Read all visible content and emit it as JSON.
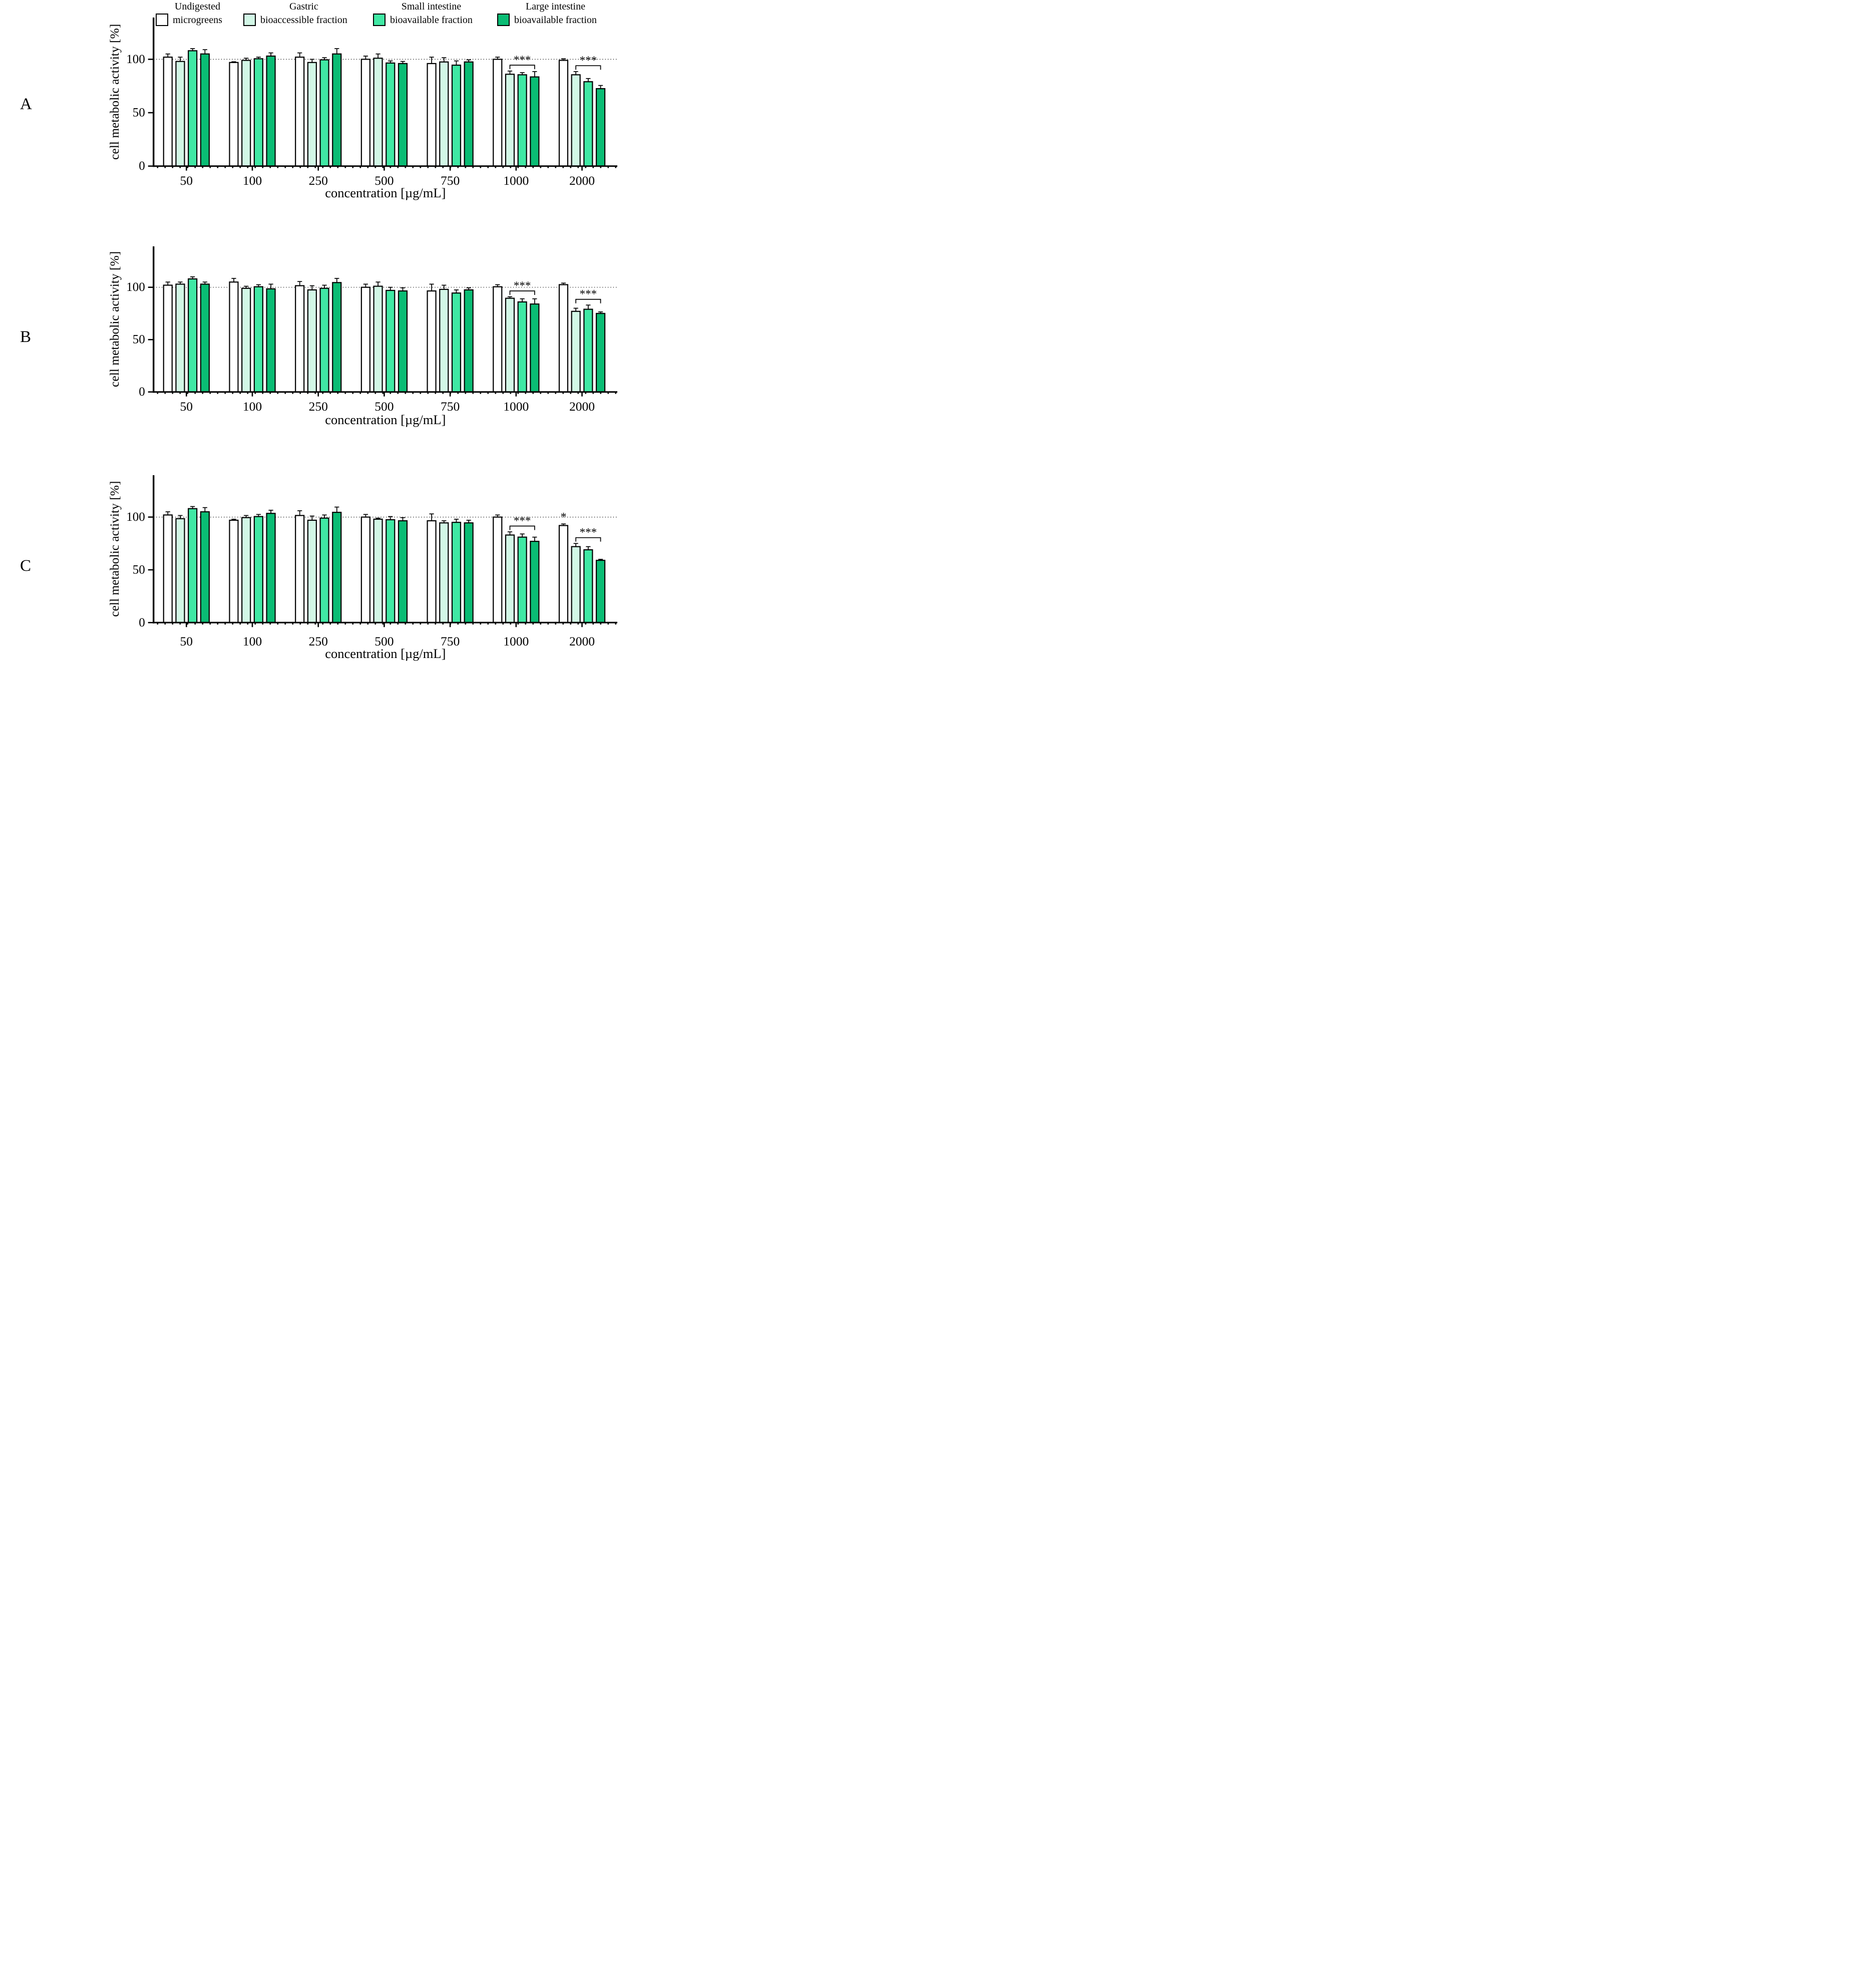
{
  "legend": {
    "items": [
      {
        "line1": "Undigested",
        "line2": "microgreens",
        "color": "#ffffff"
      },
      {
        "line1": "Gastric",
        "line2": "bioaccessible fraction",
        "color": "#d2f7e6"
      },
      {
        "line1": "Small intestine",
        "line2": "bioavailable fraction",
        "color": "#40e8a4"
      },
      {
        "line1": "Large intestine",
        "line2": "bioavailable fraction",
        "color": "#0abc74"
      }
    ]
  },
  "chart_data": [
    {
      "type": "bar",
      "panel_label": "A",
      "xlabel": "concentration [µg/mL]",
      "ylabel": "cell metabolic activity [%]",
      "categories": [
        "50",
        "100",
        "250",
        "500",
        "750",
        "1000",
        "2000"
      ],
      "yticks": [
        0,
        50,
        100
      ],
      "ylim": [
        0,
        139
      ],
      "reference_line": 100,
      "grid": "off",
      "legend_position": "top",
      "series": [
        {
          "name": "Undigested microgreens",
          "color": "#ffffff",
          "values": [
            102,
            97,
            102,
            100,
            96,
            100,
            99
          ],
          "errors": [
            3,
            0.7,
            4,
            3,
            6,
            2,
            1.5
          ]
        },
        {
          "name": "Gastric bioaccessible fraction",
          "color": "#d2f7e6",
          "values": [
            98,
            99,
            97,
            101,
            97.5,
            86,
            85.5
          ],
          "errors": [
            4,
            2,
            3,
            4,
            4,
            3,
            3
          ]
        },
        {
          "name": "Small intestine bioavailable fraction",
          "color": "#40e8a4",
          "values": [
            108,
            100.5,
            99.5,
            96.5,
            94.5,
            85.5,
            79
          ],
          "errors": [
            2,
            1.5,
            2,
            2,
            4,
            2,
            3
          ]
        },
        {
          "name": "Large intestine bioavailable fraction",
          "color": "#0abc74",
          "values": [
            105,
            103,
            105,
            96,
            97.5,
            83.5,
            72.5
          ],
          "errors": [
            4,
            3,
            5,
            2,
            2,
            5,
            3
          ]
        }
      ],
      "significance": [
        {
          "category": "1000",
          "from_series": 1,
          "to_series": 3,
          "label": "***"
        },
        {
          "category": "2000",
          "from_series": 1,
          "to_series": 3,
          "label": "***"
        }
      ],
      "point_annotations": []
    },
    {
      "type": "bar",
      "panel_label": "B",
      "xlabel": "concentration [µg/mL]",
      "ylabel": "cell metabolic activity [%]",
      "categories": [
        "50",
        "100",
        "250",
        "500",
        "750",
        "1000",
        "2000"
      ],
      "yticks": [
        0,
        50,
        100
      ],
      "ylim": [
        0,
        139
      ],
      "reference_line": 100,
      "grid": "off",
      "legend_position": "top",
      "series": [
        {
          "name": "Undigested microgreens",
          "color": "#ffffff",
          "values": [
            102,
            105,
            101.5,
            100,
            96.5,
            100.5,
            102.5
          ],
          "errors": [
            3,
            3.5,
            4,
            3,
            6.5,
            2,
            1.5
          ]
        },
        {
          "name": "Gastric bioaccessible fraction",
          "color": "#d2f7e6",
          "values": [
            103,
            99,
            97.5,
            101,
            98,
            89.5,
            77
          ],
          "errors": [
            2,
            2,
            4,
            4,
            4,
            1.5,
            3
          ]
        },
        {
          "name": "Small intestine bioavailable fraction",
          "color": "#40e8a4",
          "values": [
            108,
            100.5,
            99,
            97,
            94.5,
            86,
            79
          ],
          "errors": [
            2,
            2,
            3,
            3,
            3,
            3,
            4
          ]
        },
        {
          "name": "Large intestine bioavailable fraction",
          "color": "#0abc74",
          "values": [
            103,
            98.5,
            104.5,
            96.5,
            97.5,
            84,
            75
          ],
          "errors": [
            2,
            4.5,
            4,
            3,
            2,
            5,
            1.5
          ]
        }
      ],
      "significance": [
        {
          "category": "1000",
          "from_series": 1,
          "to_series": 3,
          "label": "***"
        },
        {
          "category": "2000",
          "from_series": 1,
          "to_series": 3,
          "label": "***"
        }
      ],
      "point_annotations": []
    },
    {
      "type": "bar",
      "panel_label": "C",
      "xlabel": "concentration [µg/mL]",
      "ylabel": "cell metabolic activity [%]",
      "categories": [
        "50",
        "100",
        "250",
        "500",
        "750",
        "1000",
        "2000"
      ],
      "yticks": [
        0,
        50,
        100
      ],
      "ylim": [
        0,
        140
      ],
      "reference_line": 100,
      "grid": "off",
      "legend_position": "top",
      "series": [
        {
          "name": "Undigested microgreens",
          "color": "#ffffff",
          "values": [
            102,
            97,
            101.5,
            100,
            96.5,
            100,
            92
          ],
          "errors": [
            3,
            1,
            4.5,
            2.5,
            6.5,
            2,
            1.5
          ]
        },
        {
          "name": "Gastric bioaccessible fraction",
          "color": "#d2f7e6",
          "values": [
            98.5,
            99.5,
            97,
            98,
            94.5,
            83,
            72
          ],
          "errors": [
            3,
            2,
            4,
            1,
            2,
            3,
            3
          ]
        },
        {
          "name": "Small intestine bioavailable fraction",
          "color": "#40e8a4",
          "values": [
            108,
            100.5,
            99,
            97.5,
            95,
            81,
            69
          ],
          "errors": [
            2,
            2,
            3,
            3,
            3,
            3,
            3
          ]
        },
        {
          "name": "Large intestine bioavailable fraction",
          "color": "#0abc74",
          "values": [
            105,
            103.5,
            104.5,
            96.5,
            94.5,
            77,
            59
          ],
          "errors": [
            4,
            3,
            5,
            3,
            2.5,
            4,
            1
          ]
        }
      ],
      "significance": [
        {
          "category": "1000",
          "from_series": 1,
          "to_series": 3,
          "label": "***"
        },
        {
          "category": "2000",
          "from_series": 1,
          "to_series": 3,
          "label": "***"
        }
      ],
      "point_annotations": [
        {
          "category": "2000",
          "series": 0,
          "label": "*"
        }
      ]
    }
  ]
}
